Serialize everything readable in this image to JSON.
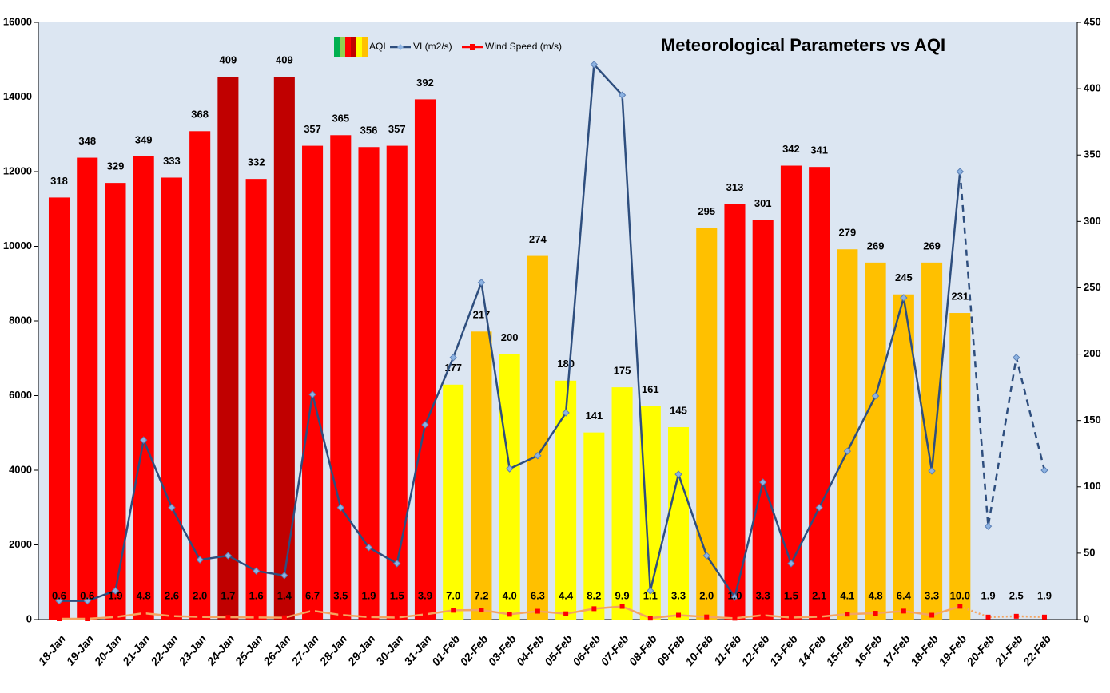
{
  "chart_data": {
    "type": "combo",
    "title": "Meteorological Parameters vs AQI",
    "categories": [
      "18-Jan",
      "19-Jan",
      "20-Jan",
      "21-Jan",
      "22-Jan",
      "23-Jan",
      "24-Jan",
      "25-Jan",
      "26-Jan",
      "27-Jan",
      "28-Jan",
      "29-Jan",
      "30-Jan",
      "31-Jan",
      "01-Feb",
      "02-Feb",
      "03-Feb",
      "04-Feb",
      "05-Feb",
      "06-Feb",
      "07-Feb",
      "08-Feb",
      "09-Feb",
      "10-Feb",
      "11-Feb",
      "12-Feb",
      "13-Feb",
      "14-Feb",
      "15-Feb",
      "16-Feb",
      "17-Feb",
      "18-Feb",
      "19-Feb",
      "20-Feb",
      "21-Feb",
      "22-Feb"
    ],
    "ylim": [
      0,
      16000
    ],
    "yticks": [
      0,
      2000,
      4000,
      6000,
      8000,
      10000,
      12000,
      14000,
      16000
    ],
    "y2lim": [
      0,
      450
    ],
    "y2ticks": [
      0,
      50,
      100,
      150,
      200,
      250,
      300,
      350,
      400,
      450
    ],
    "grid": false,
    "series": [
      {
        "name": "AQI",
        "type": "bar",
        "axis": "y2",
        "values": [
          318,
          348,
          329,
          349,
          333,
          368,
          409,
          332,
          409,
          357,
          365,
          356,
          357,
          392,
          177,
          217,
          200,
          274,
          180,
          141,
          175,
          161,
          145,
          295,
          313,
          301,
          342,
          341,
          279,
          269,
          245,
          269,
          231,
          null,
          null,
          null
        ],
        "colors": [
          "#ff0000",
          "#ff0000",
          "#ff0000",
          "#ff0000",
          "#ff0000",
          "#ff0000",
          "#c00000",
          "#ff0000",
          "#c00000",
          "#ff0000",
          "#ff0000",
          "#ff0000",
          "#ff0000",
          "#ff0000",
          "#ffff00",
          "#ffc000",
          "#ffff00",
          "#ffc000",
          "#ffff00",
          "#ffff00",
          "#ffff00",
          "#ffff00",
          "#ffff00",
          "#ffc000",
          "#ff0000",
          "#ff0000",
          "#ff0000",
          "#ff0000",
          "#ffc000",
          "#ffc000",
          "#ffc000",
          "#ffc000",
          "#ffc000",
          null,
          null,
          null
        ]
      },
      {
        "name": "VI (m2/s)",
        "type": "line",
        "color": "#2e4e7e",
        "marker_color": "#8db3e2",
        "values": [
          500,
          500,
          770,
          4810,
          3000,
          1600,
          1710,
          1300,
          1180,
          6030,
          3000,
          1930,
          1500,
          5220,
          7020,
          9030,
          4040,
          4390,
          5540,
          14870,
          14050,
          770,
          3890,
          1710,
          600,
          3680,
          1500,
          3000,
          4510,
          5990,
          8620,
          3980,
          12000,
          2500,
          7020,
          4000
        ]
      },
      {
        "name": "Wind Speed (m/s)",
        "type": "line",
        "axis": "y2",
        "color": "#f4a460",
        "marker_color": "#ff0000",
        "values": [
          0.6,
          0.6,
          1.9,
          4.8,
          2.6,
          2.0,
          1.7,
          1.6,
          1.4,
          6.7,
          3.5,
          1.9,
          1.5,
          3.9,
          7.0,
          7.2,
          4.0,
          6.3,
          4.4,
          8.2,
          9.9,
          1.1,
          3.3,
          2.0,
          1.0,
          3.3,
          1.5,
          2.1,
          4.1,
          4.8,
          6.4,
          3.3,
          10.0,
          1.9,
          2.5,
          1.9
        ],
        "value_labels": [
          "0.6",
          "0.6",
          "1.9",
          "4.8",
          "2.6",
          "2.0",
          "1.7",
          "1.6",
          "1.4",
          "6.7",
          "3.5",
          "1.9",
          "1.5",
          "3.9",
          "7.0",
          "7.2",
          "4.0",
          "6.3",
          "4.4",
          "8.2",
          "9.9",
          "1.1",
          "3.3",
          "2.0",
          "1.0",
          "3.3",
          "1.5",
          "2.1",
          "4.1",
          "4.8",
          "6.4",
          "3.3",
          "10.0",
          "1.9",
          "2.5",
          "1.9"
        ]
      }
    ]
  }
}
